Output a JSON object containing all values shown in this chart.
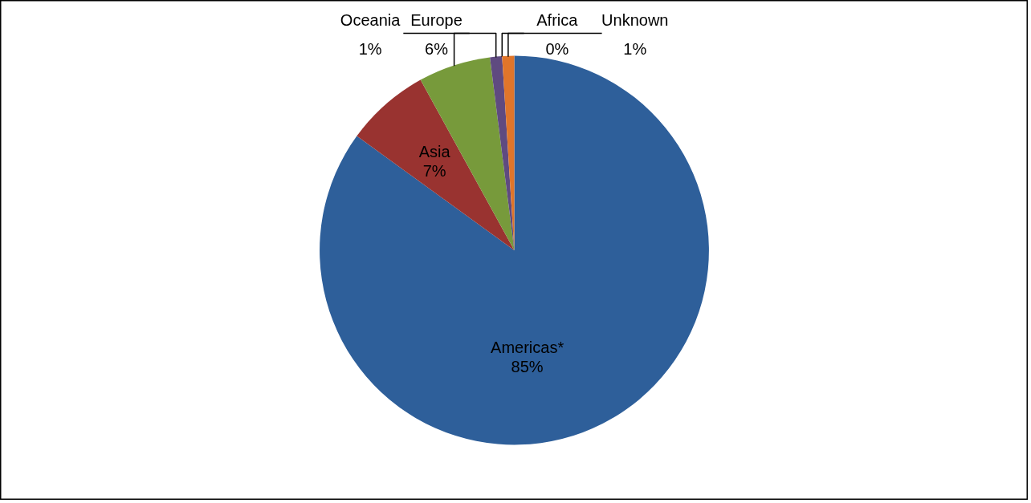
{
  "chart_data": {
    "type": "pie",
    "categories": [
      "Americas*",
      "Asia",
      "Europe",
      "Oceania",
      "Africa",
      "Unknown"
    ],
    "values": [
      85,
      7,
      6,
      1,
      0,
      1
    ],
    "value_labels": [
      "85%",
      "7%",
      "6%",
      "1%",
      "0%",
      "1%"
    ],
    "colors": [
      "#2e5f9a",
      "#993330",
      "#779a3b",
      "#5f4a80",
      "#3491ad",
      "#e0752a"
    ]
  }
}
